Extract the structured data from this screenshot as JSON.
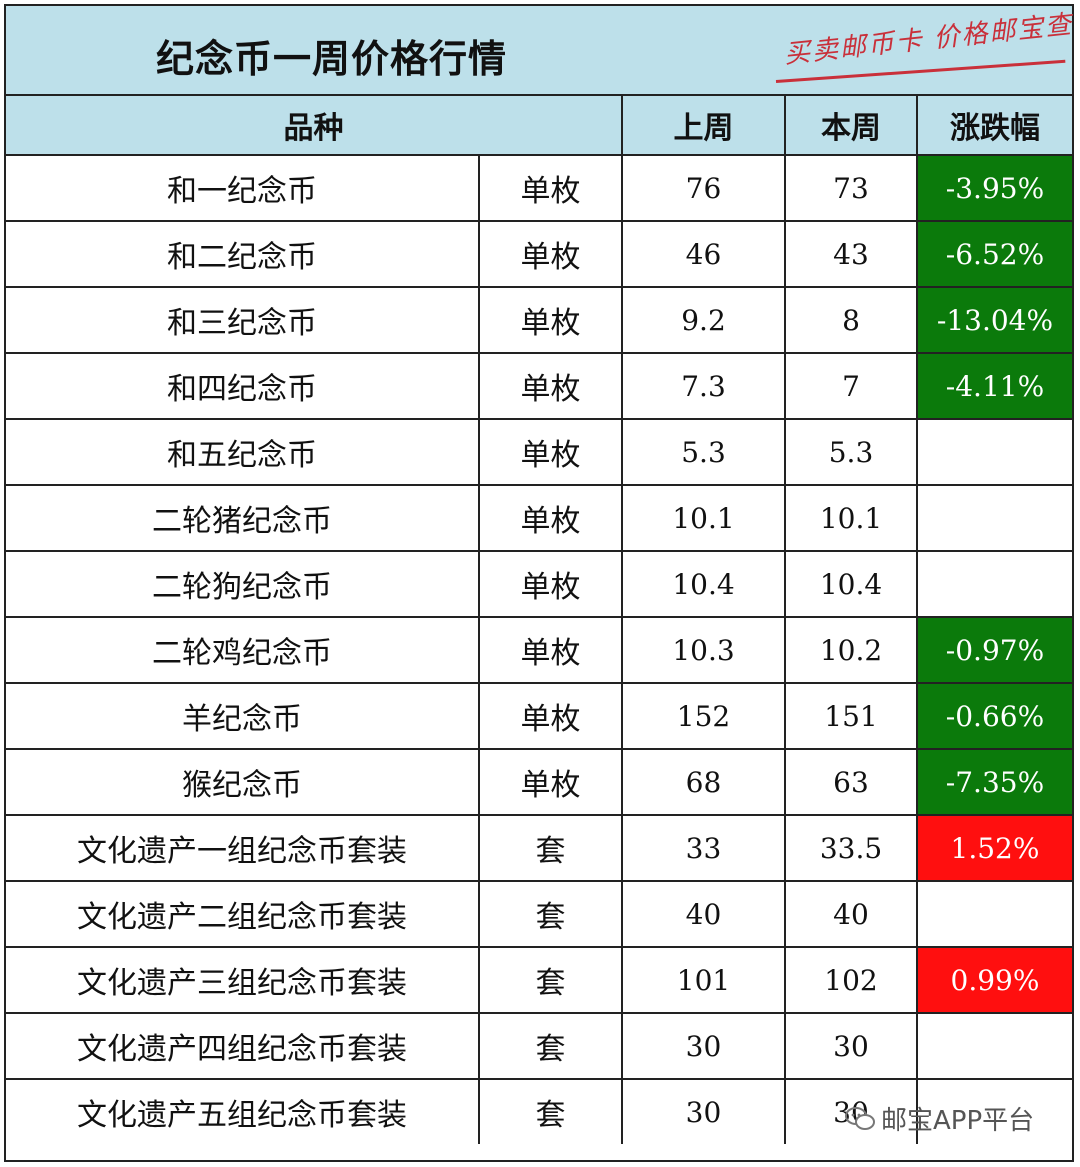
{
  "header": {
    "title": "纪念币一周价格行情",
    "stamp": "买卖邮币卡 价格邮宝查"
  },
  "columns": {
    "variety": "品种",
    "last_week": "上周",
    "this_week": "本周",
    "change": "涨跌幅"
  },
  "rows": [
    {
      "name": "和一纪念币",
      "unit": "单枚",
      "last": "76",
      "current": "73",
      "change": "-3.95%",
      "trend": "down"
    },
    {
      "name": "和二纪念币",
      "unit": "单枚",
      "last": "46",
      "current": "43",
      "change": "-6.52%",
      "trend": "down"
    },
    {
      "name": "和三纪念币",
      "unit": "单枚",
      "last": "9.2",
      "current": "8",
      "change": "-13.04%",
      "trend": "down"
    },
    {
      "name": "和四纪念币",
      "unit": "单枚",
      "last": "7.3",
      "current": "7",
      "change": "-4.11%",
      "trend": "down"
    },
    {
      "name": "和五纪念币",
      "unit": "单枚",
      "last": "5.3",
      "current": "5.3",
      "change": "",
      "trend": "flat"
    },
    {
      "name": "二轮猪纪念币",
      "unit": "单枚",
      "last": "10.1",
      "current": "10.1",
      "change": "",
      "trend": "flat"
    },
    {
      "name": "二轮狗纪念币",
      "unit": "单枚",
      "last": "10.4",
      "current": "10.4",
      "change": "",
      "trend": "flat"
    },
    {
      "name": "二轮鸡纪念币",
      "unit": "单枚",
      "last": "10.3",
      "current": "10.2",
      "change": "-0.97%",
      "trend": "down"
    },
    {
      "name": "羊纪念币",
      "unit": "单枚",
      "last": "152",
      "current": "151",
      "change": "-0.66%",
      "trend": "down"
    },
    {
      "name": "猴纪念币",
      "unit": "单枚",
      "last": "68",
      "current": "63",
      "change": "-7.35%",
      "trend": "down"
    },
    {
      "name": "文化遗产一组纪念币套装",
      "unit": "套",
      "last": "33",
      "current": "33.5",
      "change": "1.52%",
      "trend": "up"
    },
    {
      "name": "文化遗产二组纪念币套装",
      "unit": "套",
      "last": "40",
      "current": "40",
      "change": "",
      "trend": "flat"
    },
    {
      "name": "文化遗产三组纪念币套装",
      "unit": "套",
      "last": "101",
      "current": "102",
      "change": "0.99%",
      "trend": "up"
    },
    {
      "name": "文化遗产四组纪念币套装",
      "unit": "套",
      "last": "30",
      "current": "30",
      "change": "",
      "trend": "flat"
    },
    {
      "name": "文化遗产五组纪念币套装",
      "unit": "套",
      "last": "30",
      "current": "30",
      "change": "",
      "trend": "flat"
    }
  ],
  "colors": {
    "down": "#0b7a0b",
    "up": "#ff0f0f",
    "header_bg": "#bde0ea"
  },
  "watermark": {
    "icon": "wechat-icon",
    "text": "邮宝APP平台"
  }
}
